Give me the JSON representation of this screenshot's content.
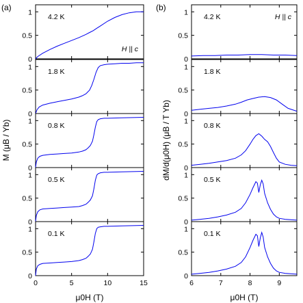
{
  "figure": {
    "panel_labels": [
      "(a)",
      "(b)"
    ]
  },
  "chart_data": [
    {
      "type": "line",
      "panel": "(a)",
      "ylabel": "M (μB / Yb)",
      "xlabel": "μ0H (T)",
      "xlim": [
        0,
        15
      ],
      "ylim": [
        0,
        1.15
      ],
      "xticks": [
        "0",
        "5",
        "10",
        "15"
      ],
      "yticks": [
        "0",
        "0.5",
        "1"
      ],
      "line_color": "#0000ee",
      "field_annotation": "H || c",
      "field_annotation_row": 0,
      "rows": [
        {
          "label": "4.2 K",
          "series": [
            {
              "x": [
                0,
                0.3,
                1,
                2,
                3,
                4,
                5,
                6,
                7,
                7.5,
                8,
                8.5,
                9,
                10,
                11,
                12,
                13,
                14,
                15
              ],
              "y": [
                0,
                0.05,
                0.12,
                0.2,
                0.27,
                0.33,
                0.39,
                0.45,
                0.52,
                0.56,
                0.6,
                0.65,
                0.7,
                0.8,
                0.88,
                0.94,
                0.98,
                1.0,
                1.0
              ]
            }
          ]
        },
        {
          "label": "1.8 K",
          "series": [
            {
              "x": [
                0,
                0.2,
                0.5,
                1,
                2,
                3,
                4,
                5,
                6,
                6.5,
                7,
                7.5,
                7.8,
                8.1,
                8.4,
                8.7,
                9,
                9.5,
                10,
                11,
                12,
                13,
                14,
                15
              ],
              "y": [
                0,
                0.08,
                0.14,
                0.18,
                0.22,
                0.25,
                0.28,
                0.31,
                0.35,
                0.38,
                0.42,
                0.5,
                0.6,
                0.73,
                0.88,
                0.98,
                1.02,
                1.04,
                1.05,
                1.06,
                1.07,
                1.07,
                1.08,
                1.08
              ]
            }
          ]
        },
        {
          "label": "0.8 K",
          "series": [
            {
              "x": [
                0,
                0.1,
                0.3,
                0.6,
                1,
                2,
                3,
                4,
                5,
                6,
                6.5,
                7,
                7.3,
                7.6,
                7.9,
                8.1,
                8.3,
                8.5,
                8.7,
                9,
                9.5,
                10,
                12,
                15
              ],
              "y": [
                0,
                0.12,
                0.2,
                0.24,
                0.26,
                0.28,
                0.29,
                0.3,
                0.31,
                0.33,
                0.35,
                0.38,
                0.42,
                0.47,
                0.56,
                0.7,
                0.86,
                0.98,
                1.02,
                1.04,
                1.05,
                1.05,
                1.06,
                1.07
              ]
            }
          ]
        },
        {
          "label": "0.5 K",
          "series": [
            {
              "x": [
                0,
                0.1,
                0.3,
                0.6,
                1,
                2,
                3,
                4,
                5,
                6,
                6.5,
                7,
                7.3,
                7.6,
                7.9,
                8.1,
                8.3,
                8.5,
                8.7,
                9,
                9.5,
                10,
                12,
                15
              ],
              "y": [
                0,
                0.13,
                0.21,
                0.25,
                0.27,
                0.28,
                0.29,
                0.3,
                0.31,
                0.32,
                0.34,
                0.37,
                0.41,
                0.46,
                0.55,
                0.7,
                0.88,
                0.99,
                1.02,
                1.04,
                1.05,
                1.05,
                1.06,
                1.07
              ]
            }
          ]
        },
        {
          "label": "0.1 K",
          "series": [
            {
              "x": [
                0,
                0.1,
                0.3,
                0.6,
                1,
                2,
                3,
                4,
                5,
                6,
                6.5,
                7,
                7.3,
                7.6,
                7.9,
                8.1,
                8.3,
                8.5,
                8.7,
                9,
                9.5,
                10,
                12,
                15
              ],
              "y": [
                0,
                0.14,
                0.21,
                0.24,
                0.26,
                0.27,
                0.28,
                0.29,
                0.3,
                0.32,
                0.34,
                0.37,
                0.41,
                0.46,
                0.56,
                0.72,
                0.9,
                1.0,
                1.03,
                1.04,
                1.05,
                1.05,
                1.06,
                1.07
              ]
            }
          ]
        }
      ]
    },
    {
      "type": "line",
      "panel": "(b)",
      "ylabel": "dM/d(μ0H) (μB / T Yb)",
      "xlabel": "μ0H (T)",
      "xlim": [
        6,
        9.6
      ],
      "ylim": [
        0,
        1.15
      ],
      "xticks": [
        "6",
        "7",
        "8",
        "9"
      ],
      "yticks": [
        "0",
        "0.5",
        "1"
      ],
      "line_color": "#0000ee",
      "field_annotation": "H || c",
      "field_annotation_row": 0,
      "rows": [
        {
          "label": "4.2 K",
          "series": [
            {
              "x": [
                6,
                6.4,
                6.8,
                7.2,
                7.6,
                8,
                8.4,
                8.8,
                9.2,
                9.6
              ],
              "y": [
                0.06,
                0.07,
                0.07,
                0.08,
                0.08,
                0.09,
                0.09,
                0.08,
                0.08,
                0.07
              ]
            }
          ]
        },
        {
          "label": "1.8 K",
          "series": [
            {
              "x": [
                6,
                6.3,
                6.6,
                6.9,
                7.2,
                7.5,
                7.7,
                7.9,
                8.1,
                8.3,
                8.5,
                8.7,
                8.9,
                9.1,
                9.3,
                9.6
              ],
              "y": [
                0.07,
                0.09,
                0.11,
                0.13,
                0.16,
                0.2,
                0.24,
                0.29,
                0.32,
                0.35,
                0.36,
                0.34,
                0.29,
                0.2,
                0.11,
                0.05
              ]
            }
          ]
        },
        {
          "label": "0.8 K",
          "series": [
            {
              "x": [
                6,
                6.3,
                6.6,
                6.9,
                7.2,
                7.5,
                7.7,
                7.85,
                8,
                8.1,
                8.2,
                8.3,
                8.4,
                8.5,
                8.6,
                8.7,
                8.8,
                8.9,
                9,
                9.2,
                9.4,
                9.6
              ],
              "y": [
                0.05,
                0.07,
                0.09,
                0.12,
                0.15,
                0.2,
                0.27,
                0.36,
                0.5,
                0.6,
                0.68,
                0.72,
                0.67,
                0.6,
                0.55,
                0.45,
                0.32,
                0.2,
                0.12,
                0.07,
                0.05,
                0.04
              ]
            }
          ]
        },
        {
          "label": "0.5 K",
          "series": [
            {
              "x": [
                6,
                6.3,
                6.6,
                6.9,
                7.2,
                7.5,
                7.7,
                7.85,
                8,
                8.1,
                8.2,
                8.25,
                8.3,
                8.35,
                8.4,
                8.45,
                8.5,
                8.6,
                8.7,
                8.8,
                8.9,
                9,
                9.2,
                9.4,
                9.6
              ],
              "y": [
                0.03,
                0.05,
                0.07,
                0.1,
                0.14,
                0.2,
                0.28,
                0.4,
                0.58,
                0.72,
                0.85,
                0.82,
                0.62,
                0.78,
                0.88,
                0.8,
                0.6,
                0.4,
                0.26,
                0.16,
                0.1,
                0.07,
                0.05,
                0.04,
                0.03
              ]
            }
          ]
        },
        {
          "label": "0.1 K",
          "series": [
            {
              "x": [
                6,
                6.3,
                6.6,
                6.9,
                7.2,
                7.5,
                7.7,
                7.85,
                8,
                8.1,
                8.2,
                8.25,
                8.3,
                8.35,
                8.4,
                8.45,
                8.5,
                8.6,
                8.7,
                8.8,
                8.9,
                9,
                9.2,
                9.4,
                9.6
              ],
              "y": [
                0.03,
                0.05,
                0.07,
                0.1,
                0.14,
                0.2,
                0.28,
                0.4,
                0.6,
                0.75,
                0.88,
                0.85,
                0.62,
                0.8,
                0.92,
                0.82,
                0.6,
                0.4,
                0.26,
                0.16,
                0.1,
                0.07,
                0.05,
                0.04,
                0.03
              ]
            }
          ]
        }
      ]
    }
  ]
}
